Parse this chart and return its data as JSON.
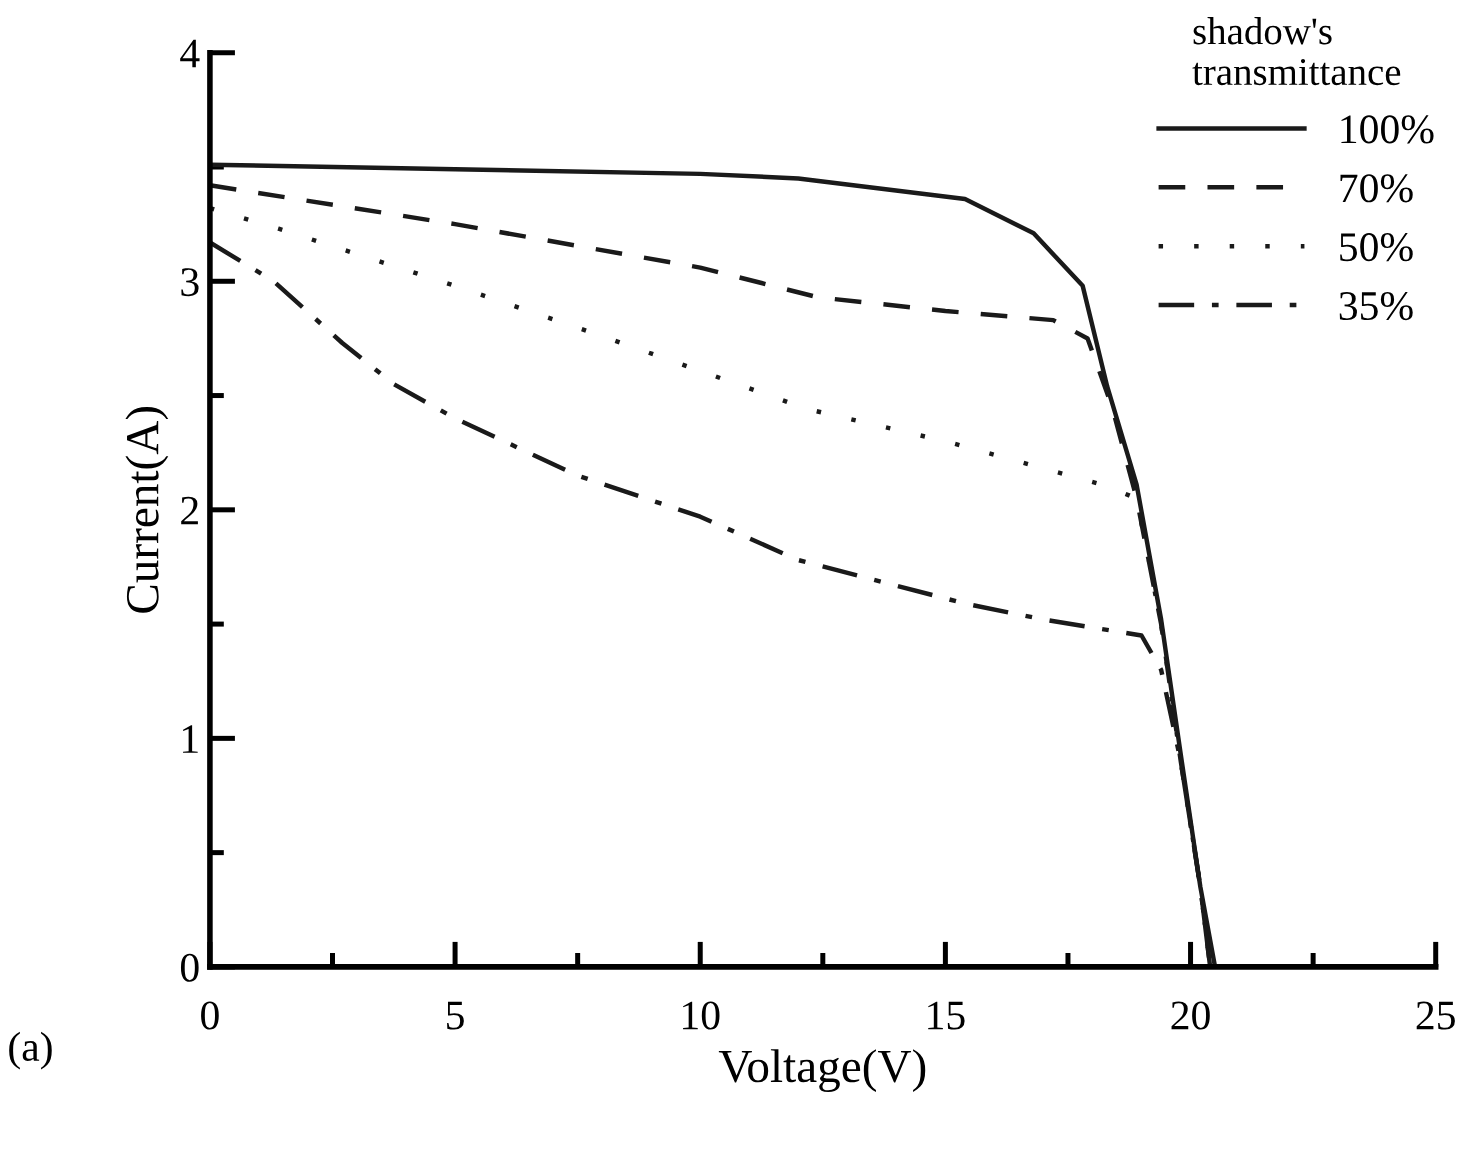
{
  "chart_data": {
    "type": "line",
    "xlabel": "Voltage(V)",
    "ylabel": "Current(A)",
    "legend_title": "shadow's\ntransmittance",
    "legend": "top right",
    "grid": false,
    "annotations": [
      "(a)"
    ],
    "xlim": [
      0,
      25
    ],
    "ylim": [
      0,
      4
    ],
    "xticks": [
      0,
      {
        "value": 2.5,
        "label": null
      },
      5,
      {
        "value": 7.5,
        "label": null
      },
      10,
      {
        "value": 12.5,
        "label": null
      },
      15,
      {
        "value": 17.5,
        "label": null
      },
      20,
      {
        "value": 22.5,
        "label": null
      },
      25
    ],
    "yticks": [
      0,
      {
        "value": 0.5,
        "label": null
      },
      1,
      {
        "value": 1.5,
        "label": null
      },
      2,
      {
        "value": 2.5,
        "label": null
      },
      3,
      {
        "value": 3.5,
        "label": null
      },
      4
    ],
    "series": [
      {
        "name": "100%",
        "color": "#1a1a1a",
        "line_style": "solid",
        "x": [
          0,
          5,
          10,
          12,
          15.4,
          16.8,
          17.8,
          18.3,
          18.9,
          19.4,
          19.8,
          20.2,
          20.5
        ],
        "values": [
          3.51,
          3.49,
          3.47,
          3.45,
          3.36,
          3.21,
          2.98,
          2.54,
          2.11,
          1.52,
          0.93,
          0.35,
          0
        ]
      },
      {
        "name": "70%",
        "color": "#1a1a1a",
        "line_style": "dashed",
        "x": [
          0,
          5,
          10,
          12.4,
          15,
          17.2,
          17.9,
          18.4,
          18.9,
          19.4,
          19.8,
          20.2,
          20.4
        ],
        "values": [
          3.42,
          3.25,
          3.06,
          2.93,
          2.87,
          2.83,
          2.75,
          2.45,
          2.05,
          1.5,
          0.9,
          0.35,
          0
        ]
      },
      {
        "name": "50%",
        "color": "#1a1a1a",
        "line_style": "dotted",
        "x": [
          0,
          1.4,
          5,
          8,
          12.2,
          15,
          18.2,
          18.9,
          19.4,
          19.8,
          20.2,
          20.4
        ],
        "values": [
          3.32,
          3.23,
          2.98,
          2.76,
          2.44,
          2.3,
          2.11,
          2.05,
          1.5,
          0.9,
          0.35,
          0
        ]
      },
      {
        "name": "35%",
        "color": "#1a1a1a",
        "line_style": "dashdot",
        "x": [
          0,
          1.3,
          2.7,
          3.75,
          5,
          7.5,
          10,
          12,
          15.4,
          17,
          19.0,
          19.4,
          19.8,
          20.2,
          20.4
        ],
        "values": [
          3.17,
          3.0,
          2.73,
          2.55,
          2.4,
          2.15,
          1.97,
          1.78,
          1.59,
          1.52,
          1.45,
          1.3,
          0.9,
          0.35,
          0
        ]
      }
    ]
  }
}
